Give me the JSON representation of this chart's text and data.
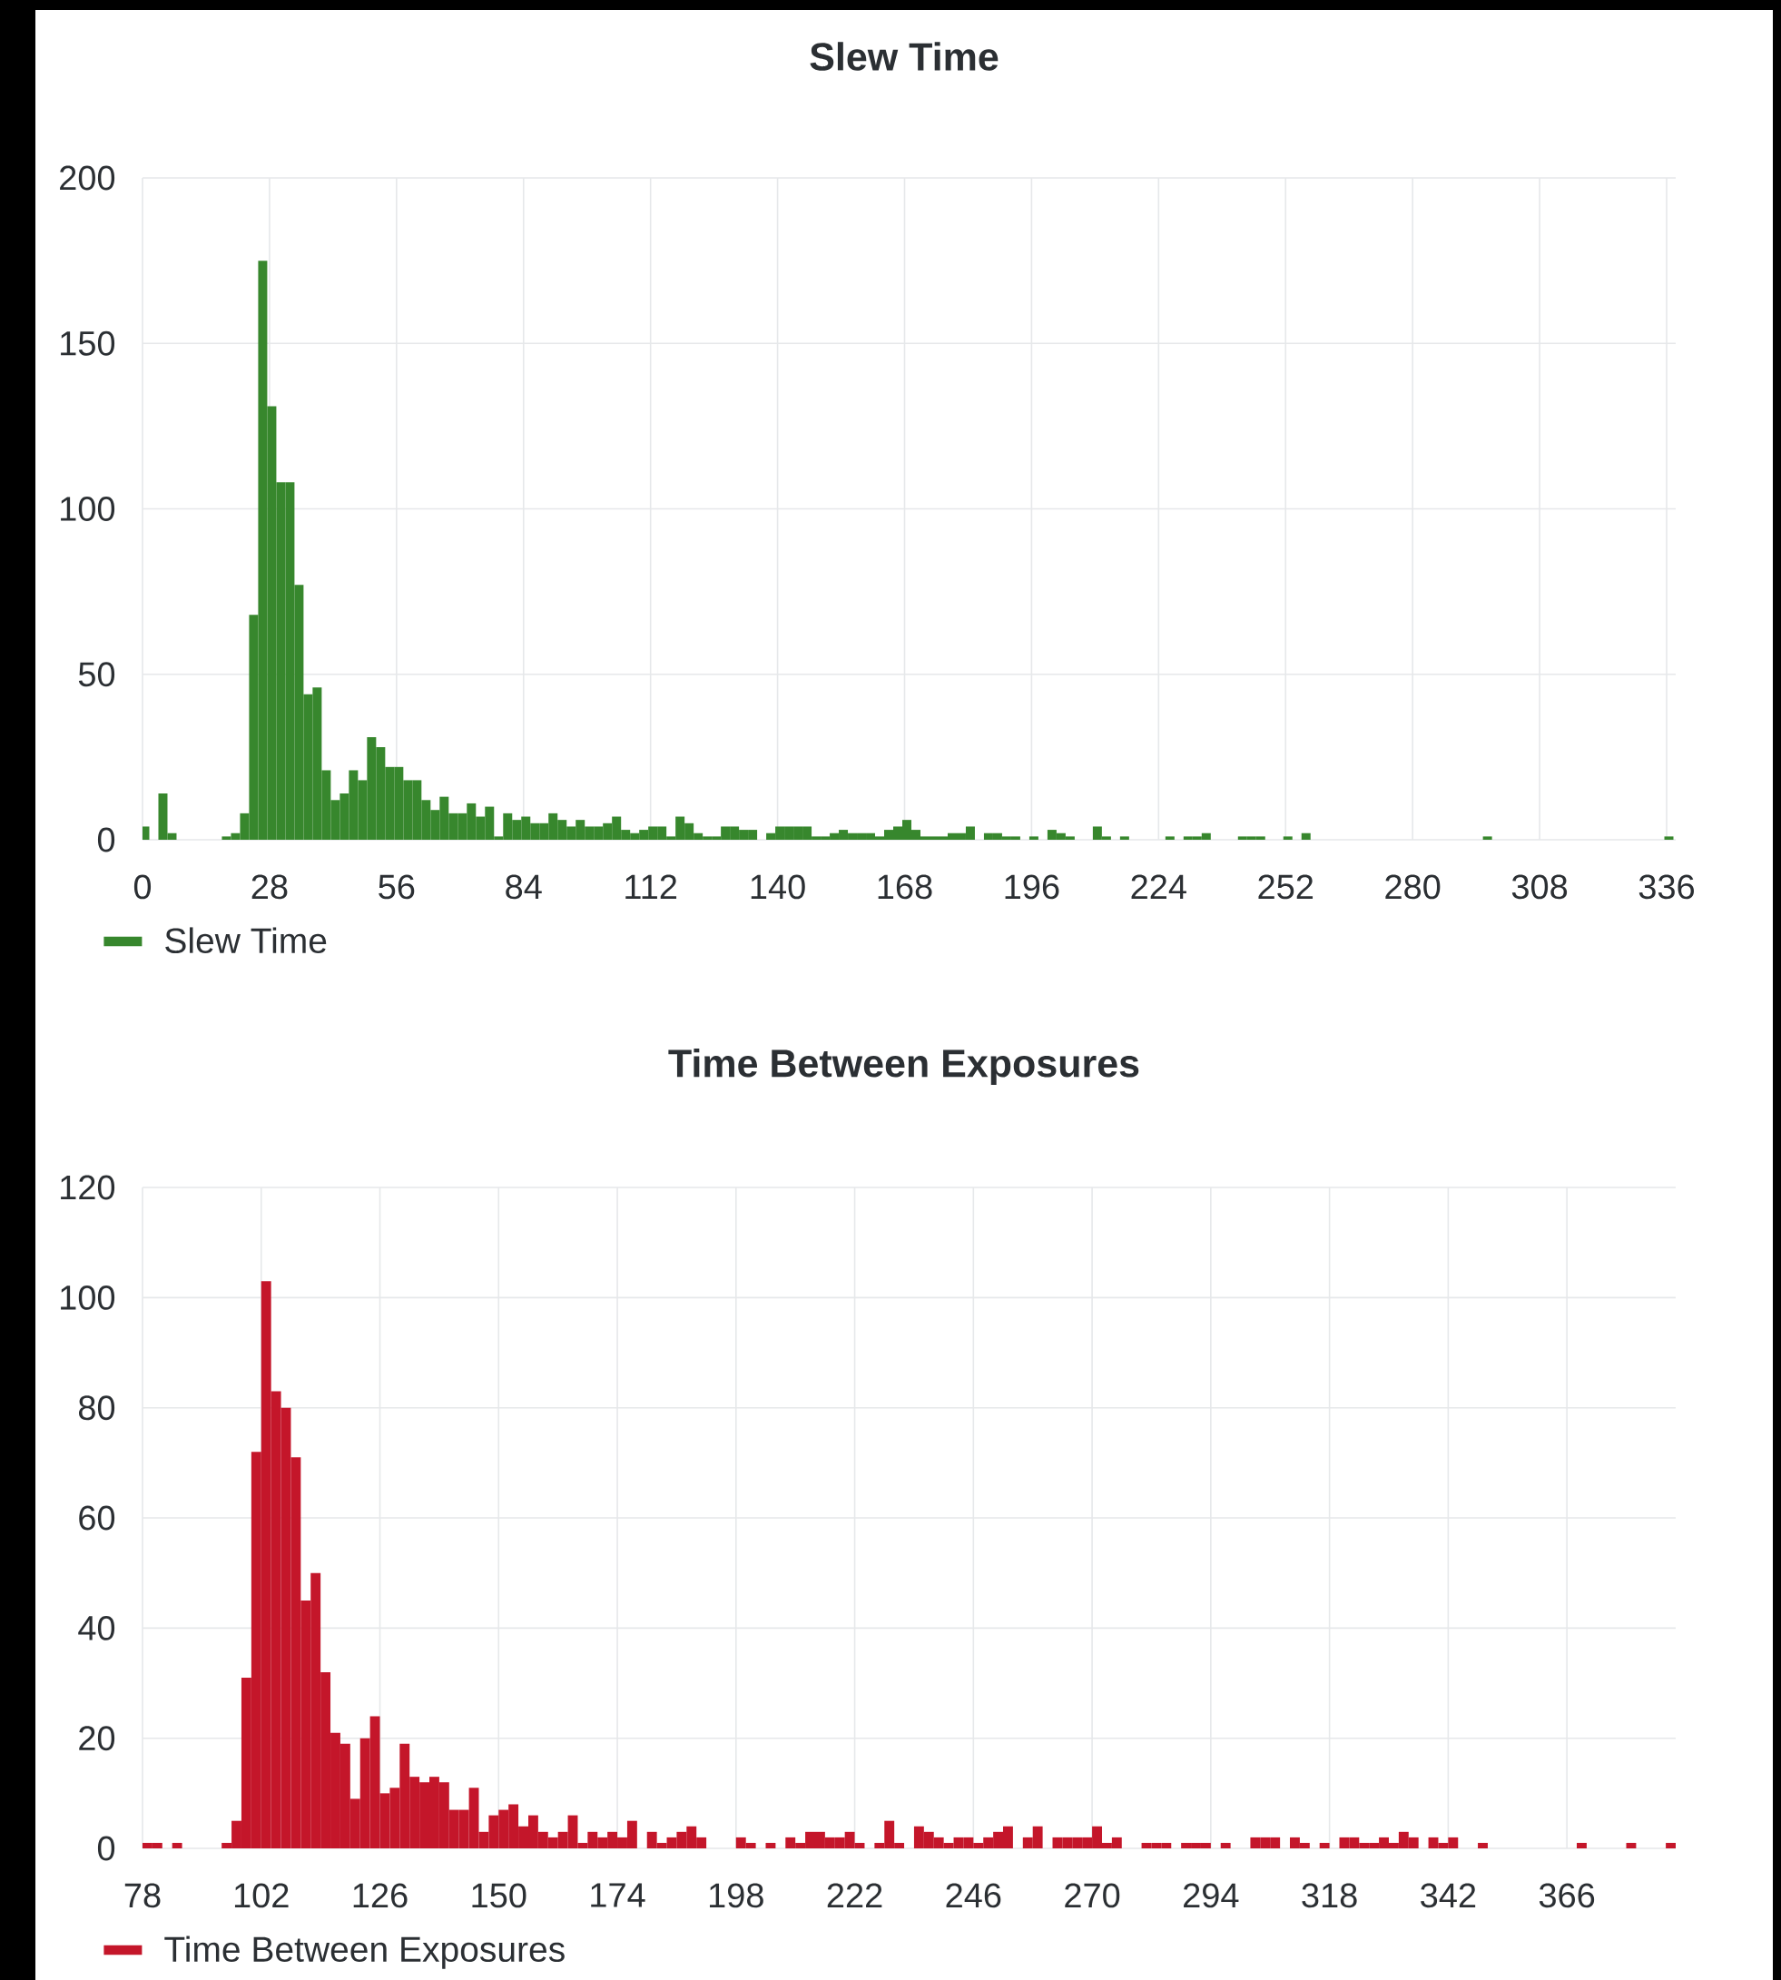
{
  "chart_data": [
    {
      "type": "histogram",
      "title": "Slew Time",
      "bins": [
        0,
        1.5,
        3.5,
        5.5,
        7.5,
        17.5,
        19.5,
        21.5,
        23.5,
        25.5,
        27.5,
        29.5,
        31.5,
        33.5,
        35.5,
        37.5,
        39.5,
        41.5,
        43.5,
        45.5,
        47.5,
        49.5,
        51.5,
        53.5,
        55.5,
        57.5,
        59.5,
        61.5,
        63.5,
        65.5,
        67.5,
        69.5,
        71.5,
        73.5,
        75.5,
        77.5,
        79.5,
        81.5,
        83.5,
        85.5,
        87.5,
        89.5,
        91.5,
        93.5,
        95.5,
        97.5,
        99.5,
        101.5,
        103.5,
        105.5,
        107.5,
        109.5,
        111.5,
        113.5,
        115.5,
        117.5,
        119.5,
        121.5,
        123.5,
        125.5,
        127.5,
        129.5,
        131.5,
        133.5,
        135.5,
        137.5,
        139.5,
        141.5,
        143.5,
        145.5,
        147.5,
        149.5,
        151.5,
        153.5,
        155.5,
        157.5,
        159.5,
        161.5,
        163.5,
        165.5,
        167.5,
        169.5,
        171.5,
        173.5,
        175.5,
        177.5,
        179.5,
        181.5,
        183.5,
        185.5,
        187.5,
        189.5,
        191.5,
        193.5,
        195.5,
        197.5,
        199.5,
        201.5,
        203.5,
        205.5,
        209.5,
        211.5,
        213.5,
        215.5,
        217.5,
        225.5,
        227.5,
        229.5,
        231.5,
        233.5,
        235.5,
        241.5,
        243.5,
        245.5,
        247.5,
        251.5,
        253.5,
        255.5,
        257.5,
        295.5,
        297.5,
        335.5,
        337.5
      ],
      "series": [
        {
          "name": "Slew Time",
          "color": "#37872d",
          "values": [
            4,
            0,
            14,
            2,
            0,
            1,
            2,
            8,
            68,
            175,
            131,
            108,
            108,
            77,
            44,
            46,
            21,
            12,
            14,
            21,
            18,
            31,
            28,
            22,
            22,
            18,
            18,
            12,
            9,
            13,
            8,
            8,
            11,
            7,
            10,
            1,
            8,
            6,
            7,
            5,
            5,
            8,
            6,
            4,
            6,
            4,
            4,
            5,
            7,
            3,
            2,
            3,
            4,
            4,
            1,
            7,
            5,
            2,
            1,
            1,
            4,
            4,
            3,
            3,
            0,
            2,
            4,
            4,
            4,
            4,
            1,
            1,
            2,
            3,
            2,
            2,
            2,
            1,
            3,
            4,
            6,
            3,
            1,
            1,
            1,
            2,
            2,
            4,
            0,
            2,
            2,
            1,
            1,
            0,
            1,
            0,
            3,
            2,
            1,
            0,
            4,
            1,
            0,
            1,
            0,
            1,
            0,
            1,
            1,
            2,
            0,
            1,
            1,
            1,
            0,
            1,
            0,
            2,
            0,
            1,
            0,
            1
          ]
        }
      ],
      "xlim": [
        0,
        338
      ],
      "xticks": [
        0,
        28,
        56,
        84,
        112,
        140,
        168,
        196,
        224,
        252,
        280,
        308,
        336
      ],
      "ylim": [
        0,
        200
      ],
      "yticks": [
        0,
        50,
        100,
        150,
        200
      ],
      "grid": true,
      "legend": "bottom left"
    },
    {
      "type": "histogram",
      "title": "Time Between Exposures",
      "bins": [
        78,
        80,
        82,
        84,
        86,
        88,
        90,
        92,
        94,
        96,
        98,
        100,
        102,
        104,
        106,
        108,
        110,
        112,
        114,
        116,
        118,
        120,
        122,
        124,
        126,
        128,
        130,
        132,
        134,
        136,
        138,
        140,
        142,
        144,
        146,
        148,
        150,
        152,
        154,
        156,
        158,
        160,
        162,
        164,
        166,
        168,
        170,
        172,
        174,
        176,
        178,
        180,
        182,
        184,
        186,
        188,
        190,
        192,
        194,
        196,
        198,
        200,
        202,
        204,
        206,
        208,
        210,
        212,
        214,
        216,
        218,
        220,
        222,
        224,
        226,
        228,
        230,
        232,
        234,
        236,
        238,
        240,
        242,
        244,
        246,
        248,
        250,
        252,
        254,
        256,
        258,
        260,
        262,
        264,
        266,
        268,
        270,
        272,
        274,
        276,
        278,
        280,
        282,
        284,
        286,
        288,
        290,
        292,
        294,
        296,
        298,
        300,
        302,
        304,
        306,
        308,
        310,
        312,
        314,
        316,
        318,
        320,
        322,
        324,
        326,
        328,
        330,
        332,
        334,
        336,
        338,
        340,
        342,
        344,
        346,
        348,
        350,
        352,
        354,
        356,
        358,
        360,
        362,
        364,
        366,
        368,
        370,
        372,
        374,
        376,
        378,
        380,
        382,
        384,
        386,
        388
      ],
      "series": [
        {
          "name": "Time Between Exposures",
          "color": "#c4162a",
          "values": [
            1,
            1,
            0,
            1,
            0,
            0,
            0,
            0,
            1,
            5,
            31,
            72,
            103,
            83,
            80,
            71,
            45,
            50,
            32,
            21,
            19,
            9,
            20,
            24,
            10,
            11,
            19,
            13,
            12,
            13,
            12,
            7,
            7,
            11,
            3,
            6,
            7,
            8,
            4,
            6,
            3,
            2,
            3,
            6,
            1,
            3,
            2,
            3,
            2,
            5,
            0,
            3,
            1,
            2,
            3,
            4,
            2,
            0,
            0,
            0,
            2,
            1,
            0,
            1,
            0,
            2,
            1,
            3,
            3,
            2,
            2,
            3,
            1,
            0,
            1,
            5,
            1,
            0,
            4,
            3,
            2,
            1,
            2,
            2,
            1,
            2,
            3,
            4,
            0,
            2,
            4,
            0,
            2,
            2,
            2,
            2,
            4,
            1,
            2,
            0,
            0,
            1,
            1,
            1,
            0,
            1,
            1,
            1,
            0,
            1,
            0,
            0,
            2,
            2,
            2,
            0,
            2,
            1,
            0,
            1,
            0,
            2,
            2,
            1,
            1,
            2,
            1,
            3,
            2,
            0,
            2,
            1,
            2,
            0,
            0,
            1,
            0,
            0,
            0,
            0,
            0,
            0,
            0,
            0,
            0,
            1,
            0,
            0,
            0,
            0,
            1,
            0,
            0,
            0,
            1
          ]
        }
      ],
      "xlim": [
        78,
        388
      ],
      "xticks": [
        78,
        102,
        126,
        150,
        174,
        198,
        222,
        246,
        270,
        294,
        318,
        342,
        366
      ],
      "ylim": [
        0,
        120
      ],
      "yticks": [
        0,
        20,
        40,
        60,
        80,
        100,
        120
      ],
      "grid": true,
      "legend": "bottom left"
    }
  ]
}
